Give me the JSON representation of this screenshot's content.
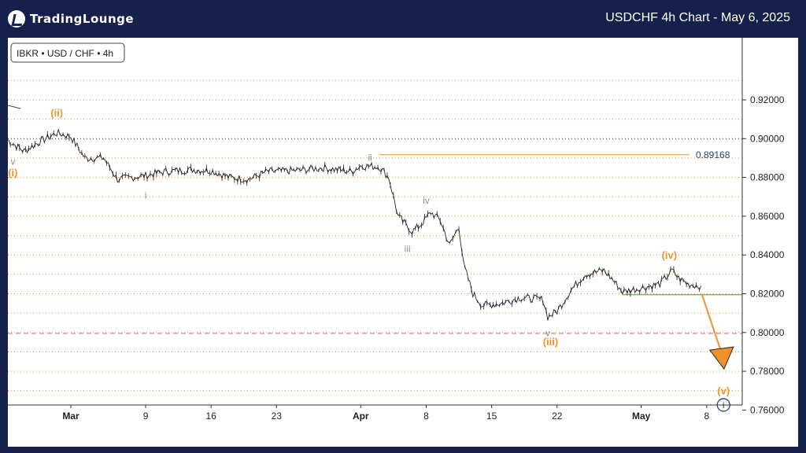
{
  "header": {
    "logo_text": "TradingLounge",
    "chart_title": "USDCHF 4h Chart - May 6, 2025"
  },
  "colors": {
    "background": "#15214a",
    "orange": "#f0922b",
    "gray": "#8a8f99",
    "navy": "#2f4070",
    "green": "#6ab04c",
    "red_dashed": "#c97070"
  },
  "chart_data": {
    "type": "line",
    "symbol_label": "IBKR • USD / CHF • 4h",
    "ylim": [
      0.745,
      0.935
    ],
    "y_ticks": [
      "0.92000",
      "0.90000",
      "0.88000",
      "0.86000",
      "0.84000",
      "0.82000",
      "0.80000",
      "0.78000",
      "0.76000"
    ],
    "y_tick_values": [
      0.92,
      0.9,
      0.88,
      0.86,
      0.84,
      0.82,
      0.8,
      0.78,
      0.76
    ],
    "x_ticks": [
      "Mar",
      "9",
      "16",
      "23",
      "Apr",
      "8",
      "15",
      "22",
      "May",
      "8"
    ],
    "x_tick_days": [
      0,
      8,
      15,
      22,
      31,
      38,
      45,
      52,
      61,
      68
    ],
    "x_bold": [
      "Mar",
      "Apr",
      "May"
    ],
    "price_path": [
      {
        "d": -6.8,
        "v": 0.8995
      },
      {
        "d": -5.0,
        "v": 0.8935
      },
      {
        "d": -3.5,
        "v": 0.898
      },
      {
        "d": -1.5,
        "v": 0.903
      },
      {
        "d": 0.0,
        "v": 0.901
      },
      {
        "d": 1.5,
        "v": 0.89
      },
      {
        "d": 3.5,
        "v": 0.89
      },
      {
        "d": 5.0,
        "v": 0.879
      },
      {
        "d": 6.5,
        "v": 0.88
      },
      {
        "d": 8.0,
        "v": 0.881
      },
      {
        "d": 10.0,
        "v": 0.883
      },
      {
        "d": 13.0,
        "v": 0.884
      },
      {
        "d": 15.0,
        "v": 0.8835
      },
      {
        "d": 17.0,
        "v": 0.88
      },
      {
        "d": 19.0,
        "v": 0.879
      },
      {
        "d": 21.0,
        "v": 0.883
      },
      {
        "d": 24.0,
        "v": 0.8835
      },
      {
        "d": 27.0,
        "v": 0.885
      },
      {
        "d": 30.0,
        "v": 0.883
      },
      {
        "d": 31.0,
        "v": 0.886
      },
      {
        "d": 33.0,
        "v": 0.8855
      },
      {
        "d": 34.0,
        "v": 0.88
      },
      {
        "d": 35.0,
        "v": 0.86
      },
      {
        "d": 36.5,
        "v": 0.852
      },
      {
        "d": 37.5,
        "v": 0.856
      },
      {
        "d": 38.5,
        "v": 0.862
      },
      {
        "d": 39.5,
        "v": 0.858
      },
      {
        "d": 40.5,
        "v": 0.845
      },
      {
        "d": 41.5,
        "v": 0.855
      },
      {
        "d": 42.0,
        "v": 0.835
      },
      {
        "d": 43.0,
        "v": 0.82
      },
      {
        "d": 44.0,
        "v": 0.814
      },
      {
        "d": 46.0,
        "v": 0.815
      },
      {
        "d": 48.0,
        "v": 0.818
      },
      {
        "d": 50.5,
        "v": 0.817
      },
      {
        "d": 51.0,
        "v": 0.808
      },
      {
        "d": 52.0,
        "v": 0.811
      },
      {
        "d": 53.5,
        "v": 0.822
      },
      {
        "d": 55.0,
        "v": 0.83
      },
      {
        "d": 57.0,
        "v": 0.832
      },
      {
        "d": 58.0,
        "v": 0.827
      },
      {
        "d": 59.0,
        "v": 0.821
      },
      {
        "d": 61.0,
        "v": 0.823
      },
      {
        "d": 63.0,
        "v": 0.825
      },
      {
        "d": 64.3,
        "v": 0.832
      },
      {
        "d": 65.0,
        "v": 0.828
      },
      {
        "d": 66.0,
        "v": 0.825
      },
      {
        "d": 67.4,
        "v": 0.824
      }
    ],
    "level_line": {
      "value": 0.89168,
      "label": "0.89168"
    },
    "support_line": {
      "value": 0.8195
    },
    "dashed_red": {
      "value": 0.7995
    },
    "wave_labels": [
      {
        "text": "(ii)",
        "d": -1.5,
        "v": 0.9115,
        "color": "orange"
      },
      {
        "text": "(i)",
        "d": -6.2,
        "v": 0.8806,
        "color": "orange"
      },
      {
        "text": "v",
        "d": -6.2,
        "v": 0.8865,
        "color": "gray"
      },
      {
        "text": "i",
        "d": 8.0,
        "v": 0.869,
        "color": "gray"
      },
      {
        "text": "ii",
        "d": 32.0,
        "v": 0.8886,
        "color": "gray"
      },
      {
        "text": "iii",
        "d": 36.0,
        "v": 0.8416,
        "color": "gray"
      },
      {
        "text": "iv",
        "d": 38.0,
        "v": 0.8665,
        "color": "gray"
      },
      {
        "text": "v",
        "d": 51.0,
        "v": 0.798,
        "color": "gray"
      },
      {
        "text": "(iii)",
        "d": 51.3,
        "v": 0.7935,
        "color": "orange"
      },
      {
        "text": "(iv)",
        "d": 64.0,
        "v": 0.838,
        "color": "orange"
      },
      {
        "text": "(v)",
        "d": 69.8,
        "v": 0.768,
        "color": "orange"
      },
      {
        "text": "i",
        "d": 69.8,
        "v": 0.761,
        "color": "navy"
      }
    ],
    "projection": {
      "from_d": 67.5,
      "from_v": 0.8195,
      "to_d": 69.6,
      "to_v": 0.782
    }
  }
}
